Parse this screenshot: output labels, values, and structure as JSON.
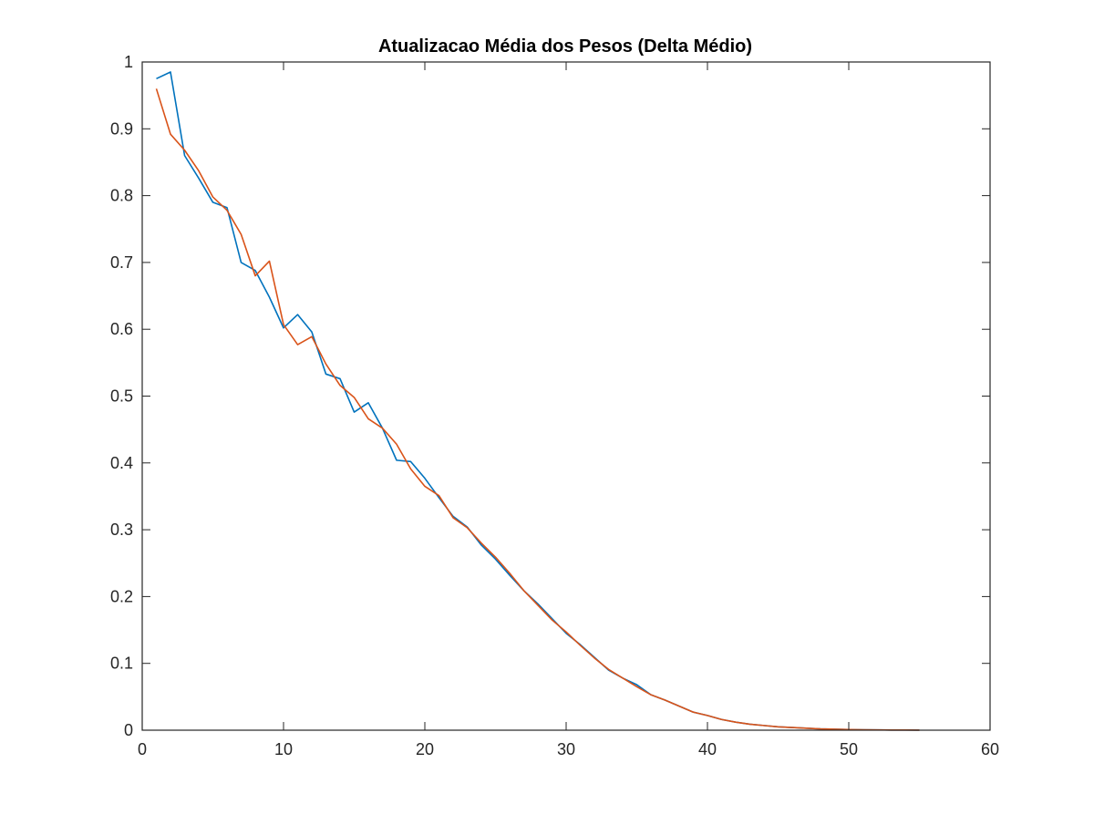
{
  "chart_data": {
    "type": "line",
    "title": "Atualizacao Média dos Pesos (Delta Médio)",
    "xlabel": "",
    "ylabel": "",
    "xlim": [
      0,
      60
    ],
    "ylim": [
      0,
      1
    ],
    "xticks": [
      0,
      10,
      20,
      30,
      40,
      50,
      60
    ],
    "xtick_labels": [
      "0",
      "10",
      "20",
      "30",
      "40",
      "50",
      "60"
    ],
    "yticks": [
      0,
      0.1,
      0.2,
      0.3,
      0.4,
      0.5,
      0.6,
      0.7,
      0.8,
      0.9,
      1
    ],
    "ytick_labels": [
      "0",
      "0.1",
      "0.2",
      "0.3",
      "0.4",
      "0.5",
      "0.6",
      "0.7",
      "0.8",
      "0.9",
      "1"
    ],
    "grid": false,
    "series": [
      {
        "color": "#0072BD",
        "x": [
          1,
          2,
          3,
          4,
          5,
          6,
          7,
          8,
          9,
          10,
          11,
          12,
          13,
          14,
          15,
          16,
          17,
          18,
          19,
          20,
          21,
          22,
          23,
          24,
          25,
          26,
          27,
          28,
          29,
          30,
          31,
          32,
          33,
          34,
          35,
          36,
          37,
          38,
          39,
          40,
          41,
          42,
          43,
          44,
          45,
          46,
          47,
          48,
          49,
          50,
          51,
          52,
          53,
          54,
          55
        ],
        "y": [
          0.975,
          0.985,
          0.86,
          0.826,
          0.79,
          0.782,
          0.7,
          0.688,
          0.648,
          0.602,
          0.622,
          0.596,
          0.533,
          0.526,
          0.476,
          0.49,
          0.452,
          0.404,
          0.402,
          0.377,
          0.348,
          0.32,
          0.304,
          0.277,
          0.256,
          0.232,
          0.209,
          0.189,
          0.167,
          0.145,
          0.128,
          0.109,
          0.09,
          0.078,
          0.068,
          0.053,
          0.045,
          0.036,
          0.027,
          0.022,
          0.016,
          0.012,
          0.009,
          0.007,
          0.005,
          0.004,
          0.003,
          0.002,
          0.0015,
          0.001,
          0.0007,
          0.0005,
          0.0003,
          0.0002,
          0.0001
        ]
      },
      {
        "color": "#D95319",
        "x": [
          1,
          2,
          3,
          4,
          5,
          6,
          7,
          8,
          9,
          10,
          11,
          12,
          13,
          14,
          15,
          16,
          17,
          18,
          19,
          20,
          21,
          22,
          23,
          24,
          25,
          26,
          27,
          28,
          29,
          30,
          31,
          32,
          33,
          34,
          35,
          36,
          37,
          38,
          39,
          40,
          41,
          42,
          43,
          44,
          45,
          46,
          47,
          48,
          49,
          50,
          51,
          52,
          53,
          54,
          55
        ],
        "y": [
          0.96,
          0.892,
          0.868,
          0.837,
          0.798,
          0.778,
          0.742,
          0.68,
          0.702,
          0.607,
          0.577,
          0.589,
          0.548,
          0.516,
          0.498,
          0.466,
          0.452,
          0.428,
          0.391,
          0.365,
          0.351,
          0.318,
          0.303,
          0.28,
          0.259,
          0.235,
          0.209,
          0.187,
          0.165,
          0.147,
          0.127,
          0.108,
          0.091,
          0.078,
          0.065,
          0.053,
          0.045,
          0.036,
          0.027,
          0.022,
          0.016,
          0.012,
          0.009,
          0.007,
          0.005,
          0.004,
          0.003,
          0.002,
          0.0015,
          0.001,
          0.0007,
          0.0005,
          0.0003,
          0.0002,
          0.0001
        ]
      }
    ]
  }
}
